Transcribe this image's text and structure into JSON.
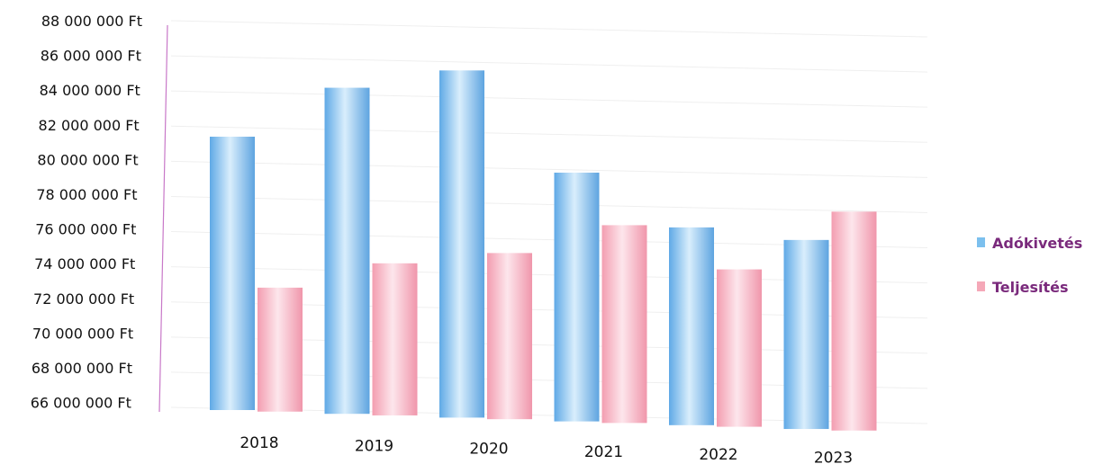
{
  "chart_data": {
    "type": "bar",
    "categories": [
      "2018",
      "2019",
      "2020",
      "2021",
      "2022",
      "2023"
    ],
    "series": [
      {
        "name": "Adókivetés",
        "values": [
          81400000,
          84400000,
          85600000,
          80000000,
          77100000,
          76600000
        ]
      },
      {
        "name": "Teljesítés",
        "values": [
          72900000,
          74500000,
          75300000,
          77100000,
          74800000,
          78300000
        ]
      }
    ],
    "y_tick_labels": [
      "88 000 000 Ft",
      "86 000 000 Ft",
      "84 000 000 Ft",
      "82 000 000 Ft",
      "80 000 000 Ft",
      "78 000 000 Ft",
      "76 000 000 Ft",
      "74 000 000 Ft",
      "72 000 000 Ft",
      "70 000 000 Ft",
      "68 000 000 Ft",
      "66 000 000 Ft"
    ],
    "ylim": [
      66000000,
      88000000
    ],
    "title": "",
    "xlabel": "",
    "ylabel": "",
    "legend_position": "right",
    "grid": true,
    "colors": {
      "Adókivetés": "#7cc0ee",
      "Teljesítés": "#f5a8b8",
      "legend_text": "#7a2a7c",
      "axis": "#c878c8"
    }
  }
}
